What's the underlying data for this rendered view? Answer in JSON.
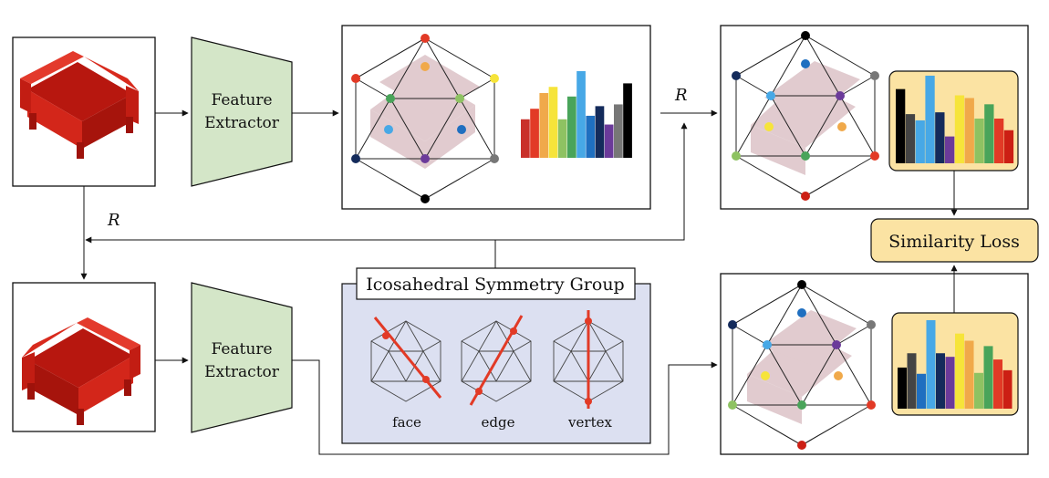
{
  "diagram": {
    "rotation_label": "R",
    "feature_extractor_label_line1": "Feature",
    "feature_extractor_label_line2": "Extractor",
    "group_title": "Icosahedral Symmetry Group",
    "axes": [
      {
        "label": "face"
      },
      {
        "label": "edge"
      },
      {
        "label": "vertex"
      }
    ],
    "loss_label": "Similarity Loss",
    "colors": {
      "extractor_fill": "#d4e6c8",
      "group_fill": "#dce0f1",
      "loss_fill": "#fbe3a3",
      "sofa": "#cc1f14",
      "sofa_ghost": "#c9a2a8",
      "axis": "#e23a26"
    },
    "histogram_colors": [
      "#c9302a",
      "#e23a26",
      "#f0a94a",
      "#f6e43a",
      "#8ec262",
      "#49a45a",
      "#47a8e6",
      "#1f6fc0",
      "#142b5b",
      "#6b3a9a",
      "#777777",
      "#000000"
    ],
    "histogram_top": [
      0.44,
      0.56,
      0.74,
      0.81,
      0.44,
      0.7,
      0.99,
      0.48,
      0.59,
      0.38,
      0.61,
      0.85
    ],
    "histogram_right": [
      0.83,
      0.55,
      0.48,
      0.98,
      0.57,
      0.3,
      0.76,
      0.73,
      0.5,
      0.66,
      0.5,
      0.37
    ],
    "histogram_bottom": [
      0.46,
      0.62,
      0.39,
      0.99,
      0.62,
      0.58,
      0.84,
      0.76,
      0.4,
      0.7,
      0.55,
      0.43
    ],
    "vertex_colors_top": [
      "#e23a26",
      "#f0a94a",
      "#f6e43a",
      "#49a45a",
      "#8ec262",
      "#e23a26",
      "#47a8e6",
      "#1f6fc0",
      "#142b5b",
      "#6b3a9a",
      "#777777",
      "#000000"
    ],
    "vertex_colors_right": [
      "#000000",
      "#1f6fc0",
      "#777777",
      "#47a8e6",
      "#6b3a9a",
      "#142b5b",
      "#f6e43a",
      "#f0a94a",
      "#8ec262",
      "#49a45a",
      "#e23a26",
      "#cc1f14"
    ]
  }
}
